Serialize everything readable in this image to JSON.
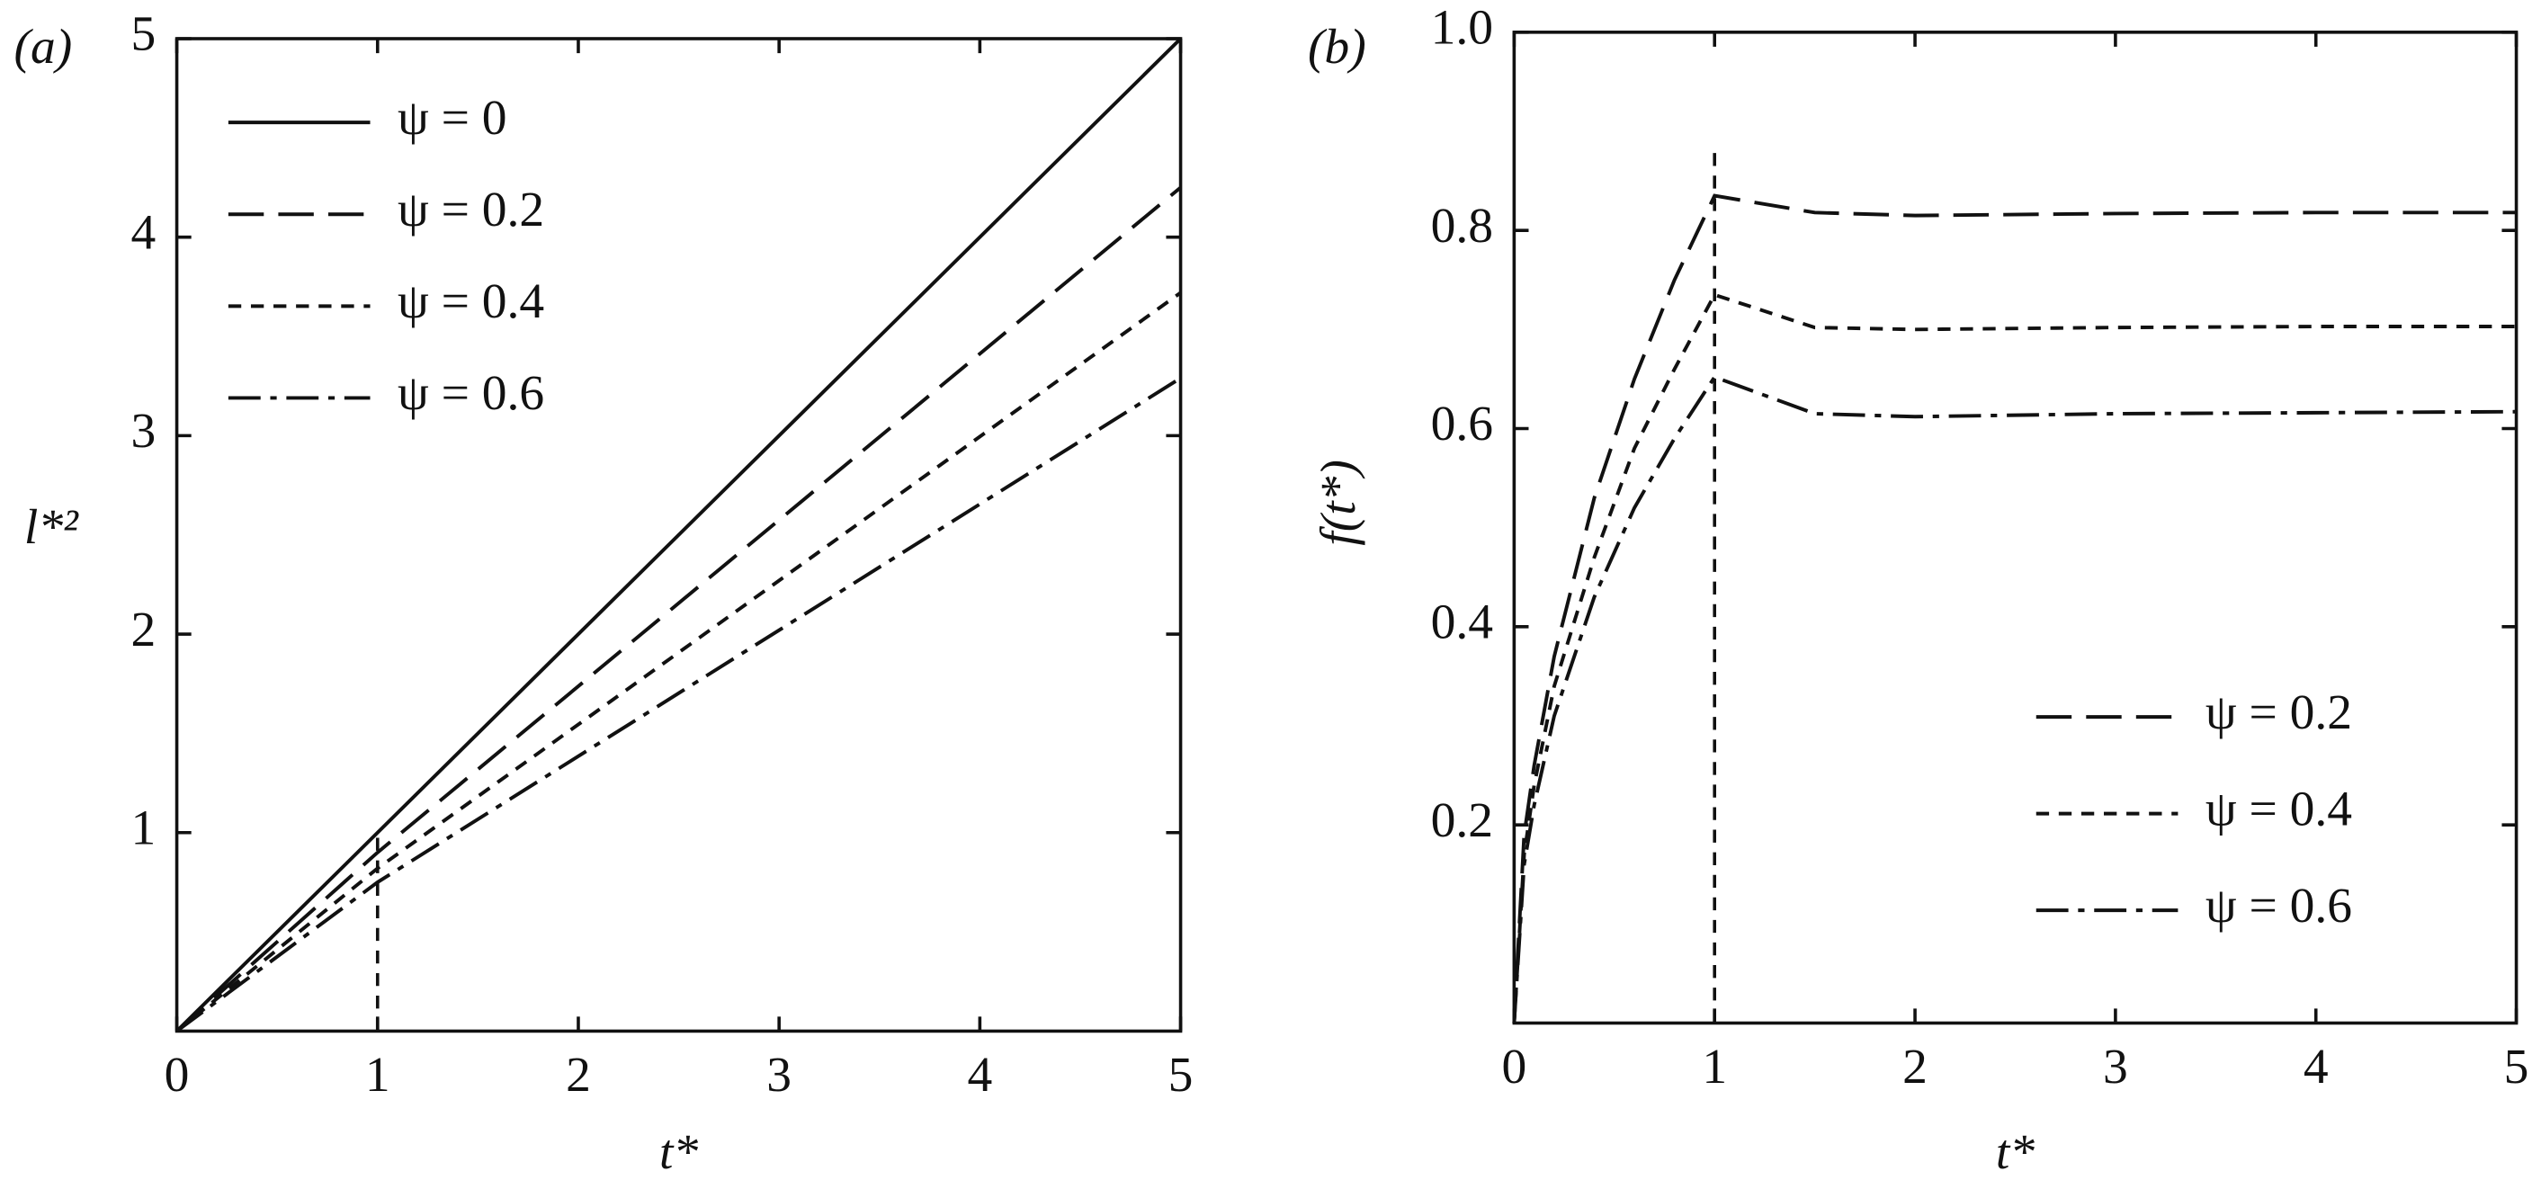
{
  "chart_data": [
    {
      "type": "line",
      "panel_label": "(a)",
      "x_label": "t*",
      "y_label": "l*²",
      "xlim": [
        0,
        5
      ],
      "ylim": [
        0,
        5
      ],
      "xticks": [
        0,
        1,
        2,
        3,
        4,
        5
      ],
      "yticks": [
        1,
        2,
        3,
        4,
        5
      ],
      "legend": "upper left",
      "vline_x": 1,
      "vline_top": 1,
      "x": [
        0,
        1,
        5
      ],
      "series": [
        {
          "name": "ψ = 0",
          "color": "#111111",
          "style": "solid",
          "values": [
            0,
            1,
            5
          ]
        },
        {
          "name": "ψ = 0.2",
          "color": "#111111",
          "style": "dashed",
          "values": [
            0,
            0.9,
            4.25
          ]
        },
        {
          "name": "ψ = 0.4",
          "color": "#111111",
          "style": "dotted",
          "values": [
            0,
            0.82,
            3.72
          ]
        },
        {
          "name": "ψ = 0.6",
          "color": "#111111",
          "style": "dashdot",
          "values": [
            0,
            0.75,
            3.29
          ]
        }
      ]
    },
    {
      "type": "line",
      "panel_label": "(b)",
      "x_label": "t*",
      "y_label": "f(t*)",
      "xlim": [
        0,
        5
      ],
      "ylim": [
        0,
        1
      ],
      "xticks": [
        0,
        1,
        2,
        3,
        4,
        5
      ],
      "yticks": [
        0.2,
        0.4,
        0.6,
        0.8,
        {
          "value": 1,
          "label": "1.0"
        }
      ],
      "legend": "lower right",
      "vline_x": 1,
      "vline_top": 0.88,
      "x": [
        0,
        0.05,
        0.1,
        0.2,
        0.4,
        0.6,
        0.8,
        1,
        1.5,
        2,
        3,
        4,
        5
      ],
      "series": [
        {
          "name": "ψ = 0.2",
          "color": "#111111",
          "style": "dashed",
          "values": [
            0,
            0.19,
            0.26,
            0.37,
            0.53,
            0.65,
            0.75,
            0.835,
            0.818,
            0.815,
            0.817,
            0.818,
            0.818
          ]
        },
        {
          "name": "ψ = 0.4",
          "color": "#111111",
          "style": "dotted",
          "values": [
            0,
            0.17,
            0.24,
            0.34,
            0.47,
            0.58,
            0.66,
            0.735,
            0.702,
            0.7,
            0.702,
            0.703,
            0.703
          ]
        },
        {
          "name": "ψ = 0.6",
          "color": "#111111",
          "style": "dashdot",
          "values": [
            0,
            0.16,
            0.22,
            0.31,
            0.43,
            0.52,
            0.59,
            0.652,
            0.615,
            0.612,
            0.615,
            0.616,
            0.617
          ]
        }
      ]
    }
  ]
}
